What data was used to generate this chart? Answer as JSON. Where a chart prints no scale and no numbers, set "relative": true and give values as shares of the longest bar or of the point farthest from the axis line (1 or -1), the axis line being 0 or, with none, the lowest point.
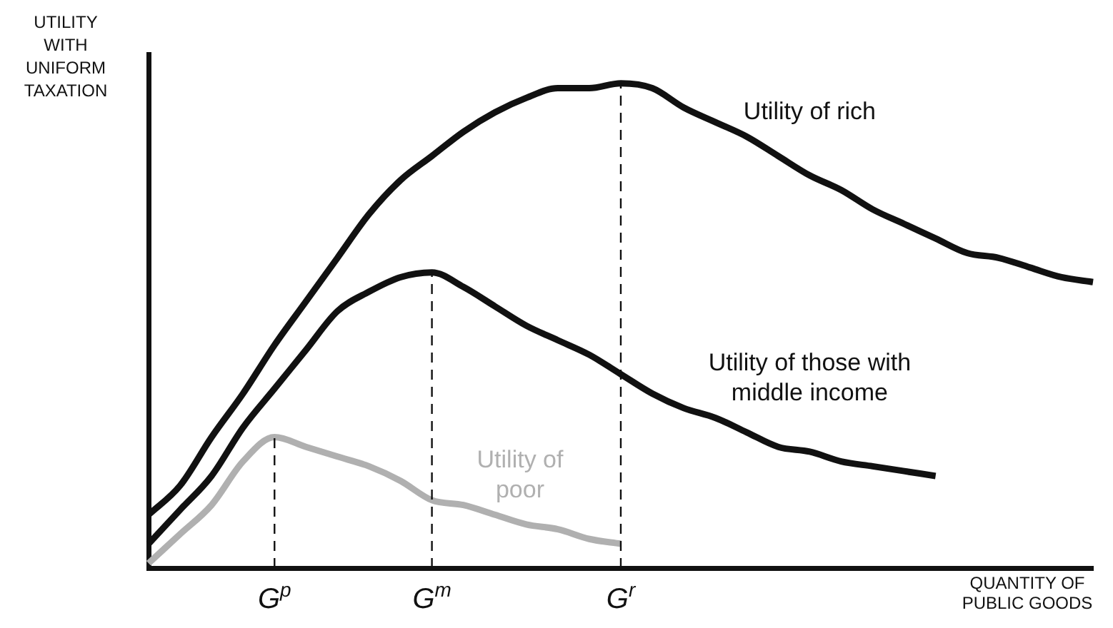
{
  "chart_data": {
    "type": "line",
    "relative": true,
    "ylabel": "UTILITY WITH UNIFORM TAXATION",
    "xlabel": "QUANTITY OF PUBLIC GOODS",
    "categories": [
      null,
      null,
      null,
      null,
      "G$^{p}$",
      null,
      null,
      null,
      null,
      "G$^{m}$",
      null,
      null,
      null,
      null,
      null,
      "G$^{r}$",
      null,
      null,
      null,
      null,
      null,
      null,
      null,
      null,
      null,
      null,
      null,
      null,
      null,
      null,
      null
    ],
    "series": [
      {
        "name": "Utility of rich",
        "color": "#111111",
        "values": [
          0.11,
          0.17,
          0.27,
          0.36,
          0.46,
          0.55,
          0.64,
          0.73,
          0.8,
          0.85,
          0.9,
          0.94,
          0.97,
          0.99,
          0.99,
          1.0,
          0.99,
          0.95,
          0.92,
          0.89,
          0.85,
          0.81,
          0.78,
          0.74,
          0.71,
          0.68,
          0.65,
          0.64,
          0.62,
          0.6,
          0.59
        ]
      },
      {
        "name": "Utility of those with middle income",
        "color": "#111111",
        "values": [
          0.05,
          0.12,
          0.19,
          0.29,
          0.37,
          0.45,
          0.53,
          0.57,
          0.6,
          0.61,
          0.58,
          0.54,
          0.5,
          0.47,
          0.44,
          0.4,
          0.36,
          0.33,
          0.31,
          0.28,
          0.25,
          0.24,
          0.22,
          0.21,
          0.2,
          0.19,
          null,
          null,
          null,
          null,
          null
        ]
      },
      {
        "name": "Utility of poor",
        "color": "#b0b0b0",
        "values": [
          0.01,
          0.07,
          0.13,
          0.22,
          0.27,
          0.25,
          0.23,
          0.21,
          0.18,
          0.14,
          0.13,
          0.11,
          0.09,
          0.08,
          0.06,
          0.05,
          null,
          null,
          null,
          null,
          null,
          null,
          null,
          null,
          null,
          null,
          null,
          null,
          null,
          null,
          null
        ]
      }
    ],
    "ref_lines": [
      {
        "axis": "x",
        "value": "G$^{p}$",
        "line_style": "dashed",
        "color": "#111111"
      },
      {
        "axis": "x",
        "value": "G$^{m}$",
        "line_style": "dashed",
        "color": "#111111"
      },
      {
        "axis": "x",
        "value": "G$^{r}$",
        "line_style": "dashed",
        "color": "#111111"
      }
    ],
    "legend": false,
    "grid": false,
    "marker": "none",
    "line_style": "solid"
  }
}
